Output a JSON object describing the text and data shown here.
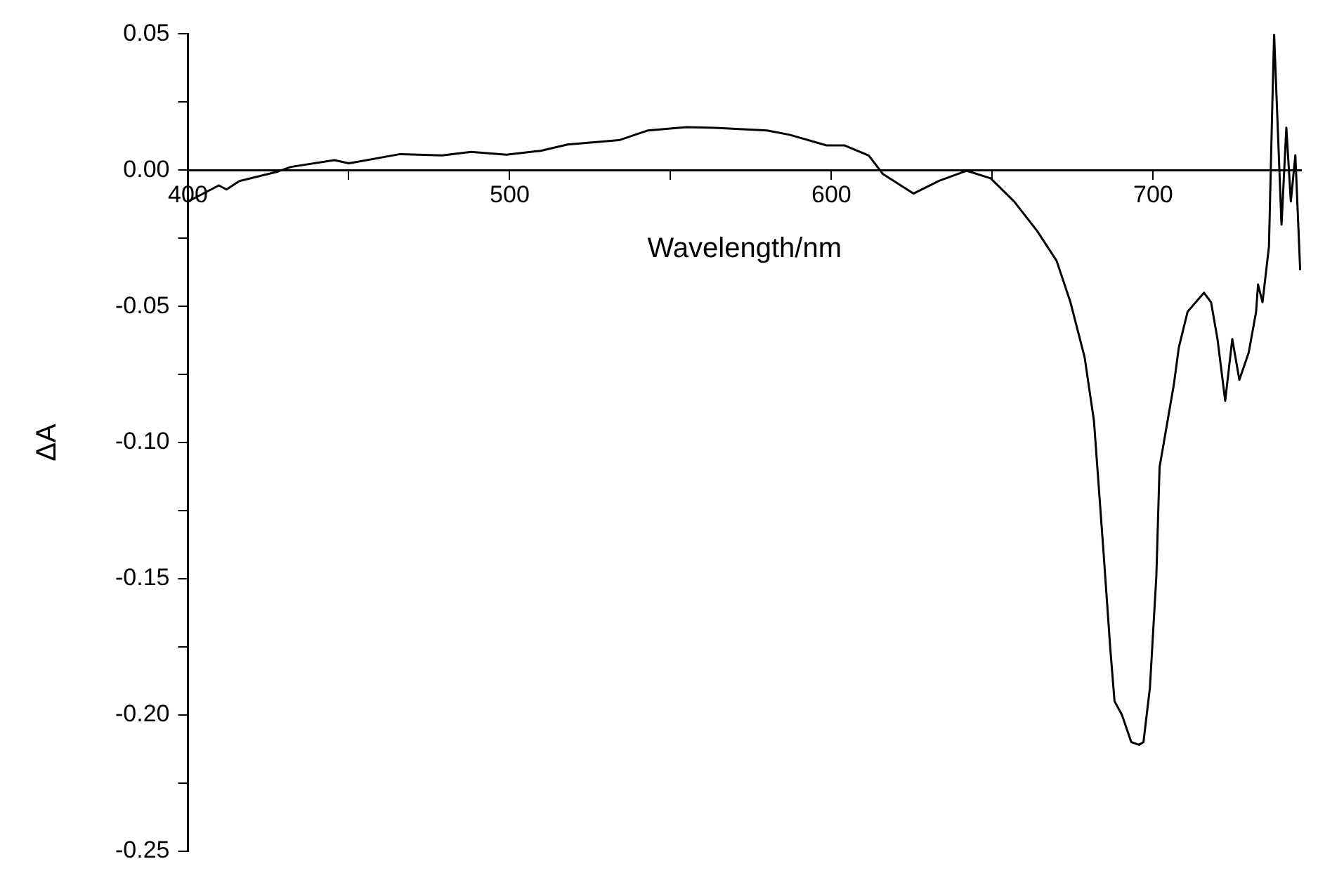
{
  "chart_data": {
    "type": "line",
    "xlabel": "Wavelength/nm",
    "ylabel": "ΔA",
    "x": [
      400,
      409.6,
      412,
      416,
      428,
      432,
      445.5,
      450,
      466,
      479,
      488,
      499,
      509.6,
      518,
      534,
      543,
      555,
      565,
      580,
      587,
      598.5,
      604,
      611.6,
      616,
      625.5,
      633.5,
      642,
      649.5,
      656.8,
      664,
      670,
      674.3,
      678.7,
      681.6,
      684.5,
      686.7,
      688,
      690.3,
      693.2,
      695.6,
      697,
      699,
      701,
      702,
      706.4,
      708,
      710.7,
      715.8,
      718,
      720,
      722.4,
      724.6,
      726.8,
      729.7,
      732,
      732.6,
      734,
      736,
      737,
      737.6,
      739.9,
      741.4,
      742.8,
      744.2,
      745.7
    ],
    "series": [
      {
        "color": "#000000",
        "values": [
          -0.0115,
          -0.0056,
          -0.0071,
          -0.004,
          -0.0005,
          0.0012,
          0.0037,
          0.0025,
          0.0059,
          0.0054,
          0.0067,
          0.0057,
          0.0071,
          0.0094,
          0.011,
          0.0146,
          0.0158,
          0.0155,
          0.0146,
          0.013,
          0.0091,
          0.0091,
          0.0054,
          -0.0014,
          -0.0086,
          -0.0039,
          -0.0002,
          -0.003,
          -0.0115,
          -0.0224,
          -0.0333,
          -0.0485,
          -0.0687,
          -0.092,
          -0.139,
          -0.176,
          -0.195,
          -0.2,
          -0.21,
          -0.211,
          -0.21,
          -0.19,
          -0.149,
          -0.109,
          -0.079,
          -0.065,
          -0.052,
          -0.045,
          -0.0485,
          -0.062,
          -0.0847,
          -0.062,
          -0.077,
          -0.067,
          -0.052,
          -0.042,
          -0.0485,
          -0.028,
          0.022,
          0.05,
          -0.02,
          0.0156,
          -0.0115,
          0.0055,
          -0.0367
        ]
      }
    ],
    "xlim": [
      400,
      746
    ],
    "xticks": [
      400,
      {
        "value": 450,
        "label": null
      },
      500,
      {
        "value": 550,
        "label": null
      },
      600,
      {
        "value": 650,
        "label": null
      },
      700
    ],
    "ylim": [
      -0.25,
      0.05
    ],
    "yticks": [
      0.05,
      {
        "value": 0.025,
        "label": null
      },
      {
        "value": 0,
        "label": "0.00"
      },
      {
        "value": -0.025,
        "label": null
      },
      -0.05,
      {
        "value": -0.075,
        "label": null
      },
      {
        "value": -0.1,
        "label": "-0.10"
      },
      {
        "value": -0.125,
        "label": null
      },
      -0.15,
      {
        "value": -0.175,
        "label": null
      },
      {
        "value": -0.2,
        "label": "-0.20"
      },
      {
        "value": -0.225,
        "label": null
      },
      -0.25
    ],
    "grid": false,
    "legend": false,
    "marker": "none",
    "line_style": "solid"
  }
}
